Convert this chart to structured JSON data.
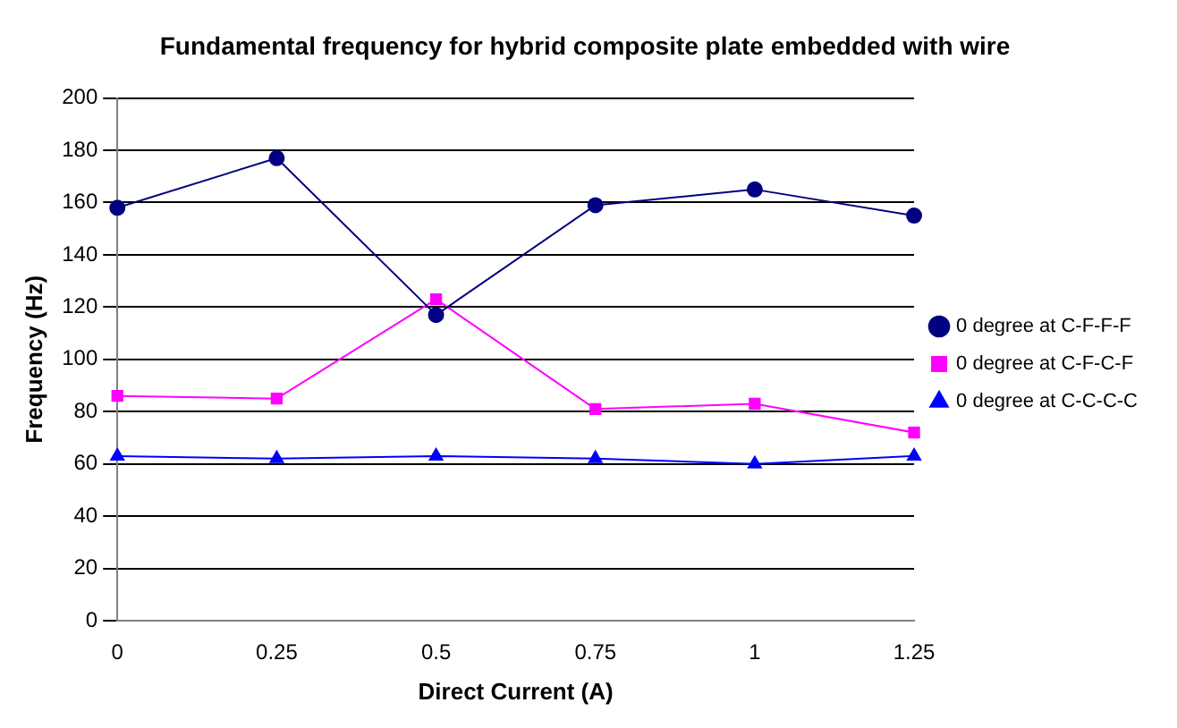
{
  "chart_data": {
    "type": "line",
    "title": "Fundamental frequency for hybrid composite plate embedded with wire",
    "xlabel": "Direct Current (A)",
    "ylabel": "Frequency (Hz)",
    "categories": [
      "0",
      "0.25",
      "0.5",
      "0.75",
      "1",
      "1.25"
    ],
    "series": [
      {
        "name": "0 degree at C-F-F-F",
        "color": "#000080",
        "marker": "circle",
        "values": [
          158,
          177,
          117,
          159,
          165,
          155
        ]
      },
      {
        "name": "0 degree at C-F-C-F",
        "color": "#ff00ff",
        "marker": "square",
        "values": [
          86,
          85,
          123,
          81,
          83,
          72
        ]
      },
      {
        "name": "0 degree at C-C-C-C",
        "color": "#0000ff",
        "marker": "triangle",
        "values": [
          63,
          62,
          63,
          62,
          60,
          63
        ]
      }
    ],
    "ylim": [
      0,
      200
    ],
    "yticks": [
      0,
      20,
      40,
      60,
      80,
      100,
      120,
      140,
      160,
      180,
      200
    ],
    "grid": "y",
    "legend": "right"
  }
}
